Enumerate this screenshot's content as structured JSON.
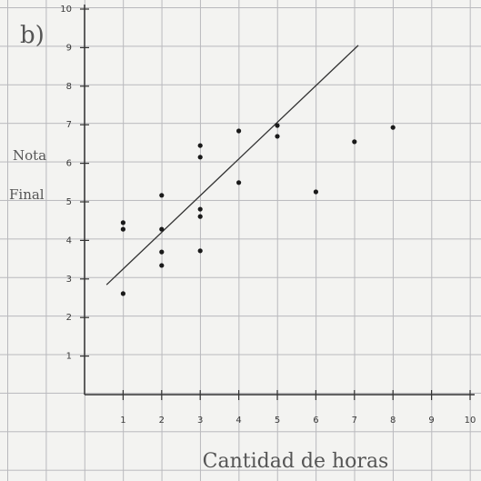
{
  "chart_data": {
    "type": "scatter",
    "label": "b)",
    "ylabel": [
      "Nota",
      "Final"
    ],
    "xlabel": "Cantidad de horas",
    "x": [
      1,
      1,
      1,
      2,
      2,
      2,
      2,
      3,
      3,
      3,
      3,
      3,
      4,
      4,
      5,
      5,
      6,
      7,
      8
    ],
    "values": [
      4.46,
      4.29,
      2.62,
      5.17,
      4.29,
      3.7,
      3.35,
      6.46,
      6.16,
      4.81,
      4.62,
      3.73,
      6.84,
      5.5,
      6.98,
      6.7,
      5.26,
      6.56,
      6.93
    ],
    "color": "#1a1a1a",
    "trend_line": {
      "x": [
        0.57,
        7.1
      ],
      "y": [
        2.85,
        9.06
      ],
      "color": "#333333"
    },
    "xlim": [
      0,
      10
    ],
    "ylim": [
      0,
      10
    ],
    "xticks": [
      1,
      2,
      3,
      4,
      5,
      6,
      7,
      8,
      9,
      10
    ],
    "yticks": [
      1,
      2,
      3,
      4,
      5,
      6,
      7,
      8,
      9,
      10
    ]
  }
}
